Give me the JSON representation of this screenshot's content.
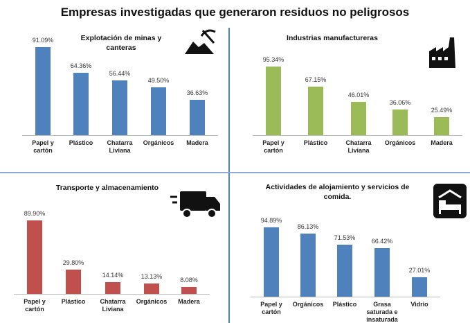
{
  "title": "Empresas investigadas que generaron residuos no peligrosos",
  "chart_data": [
    {
      "type": "bar",
      "title": "Explotación de minas y canteras",
      "color": "#4f81bd",
      "categories": [
        "Papel y cartón",
        "Plástico",
        "Chatarra Liviana",
        "Orgánicos",
        "Madera"
      ],
      "values": [
        91.09,
        64.36,
        56.44,
        49.5,
        36.63
      ],
      "value_labels": [
        "91.09%",
        "64.36%",
        "56.44%",
        "49.50%",
        "36.63%"
      ]
    },
    {
      "type": "bar",
      "title": "Industrias manufactureras",
      "color": "#9bbb59",
      "categories": [
        "Papel y cartón",
        "Plástico",
        "Chatarra Liviana",
        "Orgánicos",
        "Madera"
      ],
      "values": [
        95.34,
        67.15,
        46.01,
        36.06,
        25.49
      ],
      "value_labels": [
        "95.34%",
        "67.15%",
        "46.01%",
        "36.06%",
        "25.49%"
      ]
    },
    {
      "type": "bar",
      "title": "Transporte y almacenamiento",
      "color": "#c0504d",
      "categories": [
        "Papel y cartón",
        "Plástico",
        "Chatarra Liviana",
        "Orgánicos",
        "Madera"
      ],
      "values": [
        89.9,
        29.8,
        14.14,
        13.13,
        8.08
      ],
      "value_labels": [
        "89.90%",
        "29.80%",
        "14.14%",
        "13.13%",
        "8.08%"
      ]
    },
    {
      "type": "bar",
      "title": "Actividades de alojamiento y servicios de comida.",
      "color": "#4f81bd",
      "categories": [
        "Papel y cartón",
        "Orgánicos",
        "Plástico",
        "Grasa saturada e insaturada",
        "Vidrio"
      ],
      "values": [
        94.89,
        86.13,
        71.53,
        66.42,
        27.01
      ],
      "value_labels": [
        "94.89%",
        "86.13%",
        "71.53%",
        "66.42%",
        "27.01%"
      ]
    }
  ]
}
